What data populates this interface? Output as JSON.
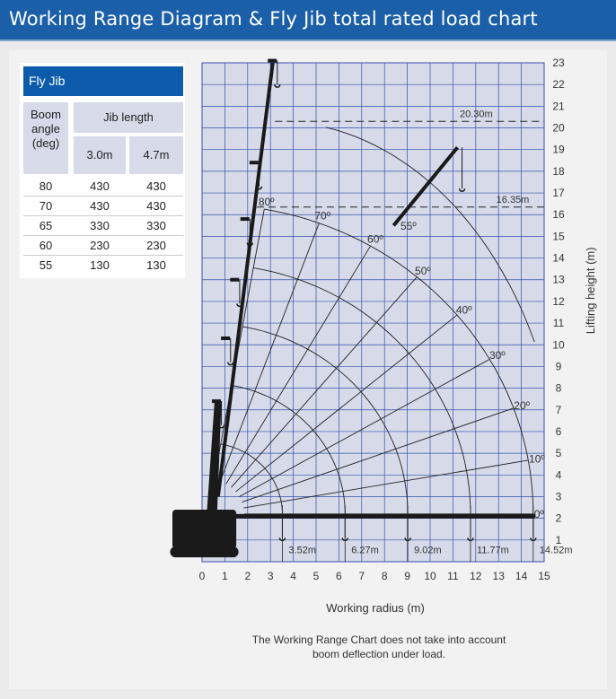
{
  "header": {
    "title": "Working Range Diagram & Fly Jib total rated load chart"
  },
  "table": {
    "title": "Fly Jib",
    "col_angle": [
      "Boom",
      "angle",
      "(deg)"
    ],
    "col_jib": "Jib length",
    "sub_cols": [
      "3.0m",
      "4.7m"
    ],
    "rows": [
      {
        "angle": "80",
        "v1": "430",
        "v2": "430"
      },
      {
        "angle": "70",
        "v1": "430",
        "v2": "430"
      },
      {
        "angle": "65",
        "v1": "330",
        "v2": "330"
      },
      {
        "angle": "60",
        "v1": "230",
        "v2": "230"
      },
      {
        "angle": "55",
        "v1": "130",
        "v2": "130"
      }
    ]
  },
  "colors": {
    "header": "#1a5fa8",
    "grid_bg": "#d6dae9",
    "grid_line": "#3550a8",
    "boom": "#1a1a1a"
  },
  "chart_data": {
    "type": "working-range",
    "xlabel": "Working radius (m)",
    "ylabel": "Lifting height (m)",
    "xlim": [
      0,
      15
    ],
    "ylim": [
      0,
      23
    ],
    "x_ticks": [
      "0",
      "1",
      "2",
      "3",
      "4",
      "5",
      "6",
      "7",
      "8",
      "9",
      "10",
      "11",
      "12",
      "13",
      "14",
      "15"
    ],
    "y_ticks": [
      "1",
      "2",
      "3",
      "4",
      "5",
      "6",
      "7",
      "8",
      "9",
      "10",
      "11",
      "12",
      "13",
      "14",
      "15",
      "16",
      "17",
      "18",
      "19",
      "20",
      "21",
      "22",
      "23"
    ],
    "boom_lengths": [
      {
        "label": "3.52m",
        "radius": 3.52
      },
      {
        "label": "6.27m",
        "radius": 6.27
      },
      {
        "label": "9.02m",
        "radius": 9.02
      },
      {
        "label": "11.77m",
        "radius": 11.77
      },
      {
        "label": "14.52m",
        "radius": 14.52
      }
    ],
    "angle_labels": [
      "80º",
      "70º",
      "60º",
      "50º",
      "40º",
      "30º",
      "20º",
      "10º",
      "0º"
    ],
    "angles": [
      80,
      70,
      60,
      50,
      40,
      30,
      20,
      10,
      0
    ],
    "jib_angle_label": "55º",
    "max_heights": [
      {
        "label": "20.30m",
        "height": 20.3
      },
      {
        "label": "16.35m",
        "height": 16.35
      }
    ]
  },
  "note": {
    "line1": "The Working Range Chart does not take into account",
    "line2": "boom deflection under load."
  }
}
